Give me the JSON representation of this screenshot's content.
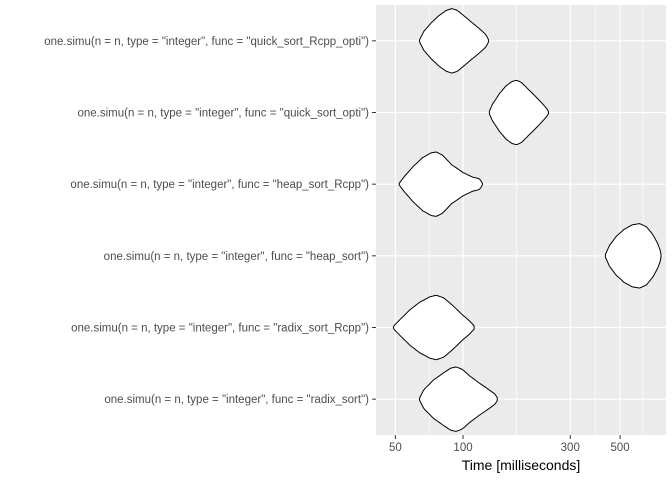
{
  "chart_data": {
    "type": "violin",
    "orientation": "horizontal",
    "xlabel": "Time [milliseconds]",
    "ylabel": "",
    "x_scale": "log10",
    "xlim": [
      41,
      800
    ],
    "x_ticks": [
      50,
      100,
      300,
      500
    ],
    "x_tick_labels": [
      "50",
      "100",
      "300",
      "500"
    ],
    "grid": true,
    "panel_background": "#ebebeb",
    "grid_color": "#ffffff",
    "violin_fill": "#ffffff",
    "violin_stroke": "#000000",
    "categories": [
      "one.simu(n = n, type = \"integer\", func = \"quick_sort_Rcpp_opti\")",
      "one.simu(n = n, type = \"integer\", func = \"quick_sort_opti\")",
      "one.simu(n = n, type = \"integer\", func = \"heap_sort_Rcpp\")",
      "one.simu(n = n, type = \"integer\", func = \"heap_sort\")",
      "one.simu(n = n, type = \"integer\", func = \"radix_sort_Rcpp\")",
      "one.simu(n = n, type = \"integer\", func = \"radix_sort\")"
    ],
    "violins": [
      {
        "min": 64,
        "max": 130,
        "profile": [
          [
            64,
            0.03
          ],
          [
            67,
            0.3
          ],
          [
            72,
            0.55
          ],
          [
            78,
            0.78
          ],
          [
            84,
            0.94
          ],
          [
            89,
            1.0
          ],
          [
            94,
            0.95
          ],
          [
            100,
            0.8
          ],
          [
            108,
            0.6
          ],
          [
            118,
            0.38
          ],
          [
            126,
            0.2
          ],
          [
            130,
            0.04
          ]
        ]
      },
      {
        "min": 131,
        "max": 240,
        "profile": [
          [
            131,
            0.04
          ],
          [
            135,
            0.25
          ],
          [
            145,
            0.58
          ],
          [
            155,
            0.82
          ],
          [
            165,
            0.96
          ],
          [
            173,
            1.0
          ],
          [
            182,
            0.93
          ],
          [
            195,
            0.72
          ],
          [
            210,
            0.5
          ],
          [
            225,
            0.28
          ],
          [
            236,
            0.12
          ],
          [
            240,
            0.03
          ]
        ]
      },
      {
        "min": 52,
        "max": 122,
        "profile": [
          [
            52,
            0.03
          ],
          [
            55,
            0.25
          ],
          [
            60,
            0.55
          ],
          [
            66,
            0.82
          ],
          [
            72,
            0.97
          ],
          [
            76,
            1.0
          ],
          [
            81,
            0.9
          ],
          [
            89,
            0.6
          ],
          [
            100,
            0.36
          ],
          [
            110,
            0.22
          ],
          [
            118,
            0.17
          ],
          [
            122,
            0.05
          ]
        ]
      },
      {
        "min": 430,
        "max": 760,
        "profile": [
          [
            430,
            0.04
          ],
          [
            448,
            0.32
          ],
          [
            480,
            0.6
          ],
          [
            520,
            0.82
          ],
          [
            565,
            0.96
          ],
          [
            610,
            1.0
          ],
          [
            655,
            0.9
          ],
          [
            700,
            0.65
          ],
          [
            735,
            0.38
          ],
          [
            755,
            0.16
          ],
          [
            760,
            0.04
          ]
        ]
      },
      {
        "min": 49,
        "max": 112,
        "profile": [
          [
            49,
            0.04
          ],
          [
            53,
            0.28
          ],
          [
            58,
            0.55
          ],
          [
            64,
            0.78
          ],
          [
            71,
            0.95
          ],
          [
            76,
            1.0
          ],
          [
            82,
            0.92
          ],
          [
            90,
            0.68
          ],
          [
            99,
            0.4
          ],
          [
            107,
            0.2
          ],
          [
            112,
            0.05
          ]
        ]
      },
      {
        "min": 64,
        "max": 142,
        "profile": [
          [
            64,
            0.03
          ],
          [
            67,
            0.3
          ],
          [
            74,
            0.6
          ],
          [
            82,
            0.82
          ],
          [
            88,
            0.96
          ],
          [
            93,
            1.0
          ],
          [
            99,
            0.93
          ],
          [
            107,
            0.72
          ],
          [
            118,
            0.5
          ],
          [
            130,
            0.3
          ],
          [
            139,
            0.15
          ],
          [
            142,
            0.04
          ]
        ]
      }
    ]
  }
}
